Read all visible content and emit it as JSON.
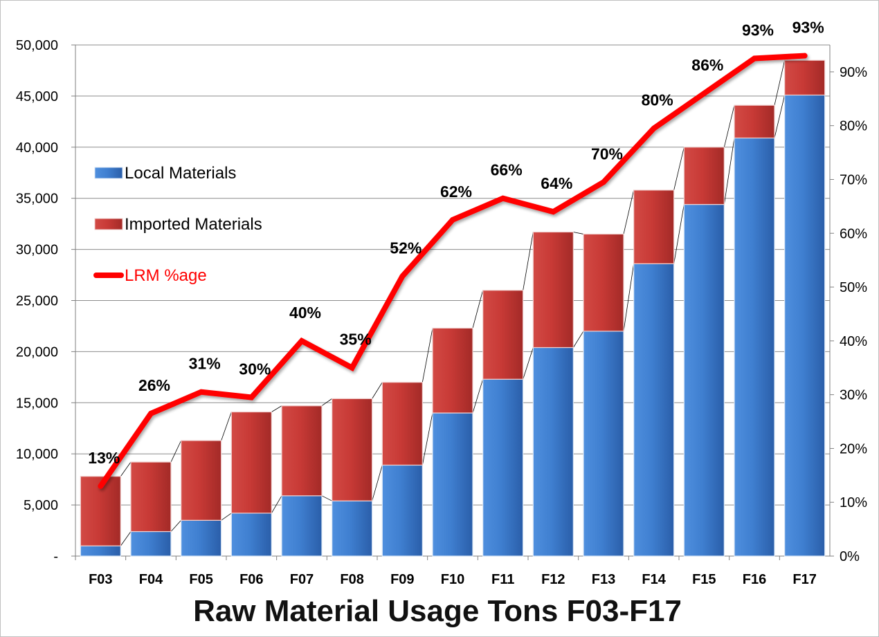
{
  "chart_data": {
    "type": "bar",
    "stacked": true,
    "title": "Raw Material Usage Tons F03-F17",
    "xlabel": "",
    "ylabel": "",
    "categories": [
      "F03",
      "F04",
      "F05",
      "F06",
      "F07",
      "F08",
      "F09",
      "F10",
      "F11",
      "F12",
      "F13",
      "F14",
      "F15",
      "F16",
      "F17"
    ],
    "series": [
      {
        "name": "Local Materials",
        "kind": "bar",
        "axis": "left",
        "color": "#3f7fd0",
        "values": [
          1000,
          2400,
          3500,
          4200,
          5900,
          5400,
          8900,
          14000,
          17300,
          20400,
          22000,
          28600,
          34400,
          40900,
          45100
        ]
      },
      {
        "name": "Imported Materials",
        "kind": "bar",
        "axis": "left",
        "color": "#c83a36",
        "values": [
          6800,
          6800,
          7800,
          9900,
          8800,
          10000,
          8100,
          8300,
          8700,
          11300,
          9500,
          7200,
          5600,
          3200,
          3400
        ]
      },
      {
        "name": "LRM %age",
        "kind": "line",
        "axis": "right",
        "color": "#ff0000",
        "values": [
          13,
          26.5,
          30.5,
          29.5,
          40,
          35,
          52,
          62.5,
          66.5,
          64,
          69.5,
          79.5,
          86,
          92.5,
          93
        ]
      }
    ],
    "data_labels": [
      "13%",
      "26%",
      "31%",
      "30%",
      "40%",
      "35%",
      "52%",
      "62%",
      "66%",
      "64%",
      "70%",
      "80%",
      "86%",
      "93%",
      "93%"
    ],
    "y_left": {
      "min": 0,
      "max": 50000,
      "step": 5000,
      "tick_labels": [
        "-",
        "5,000",
        "10,000",
        "15,000",
        "20,000",
        "25,000",
        "30,000",
        "35,000",
        "40,000",
        "45,000",
        "50,000"
      ]
    },
    "y_right": {
      "min": 0,
      "max": 95,
      "step": 10,
      "tick_labels": [
        "0%",
        "10%",
        "20%",
        "30%",
        "40%",
        "50%",
        "60%",
        "70%",
        "80%",
        "90%"
      ]
    },
    "grid": true,
    "legend_position": "left"
  }
}
